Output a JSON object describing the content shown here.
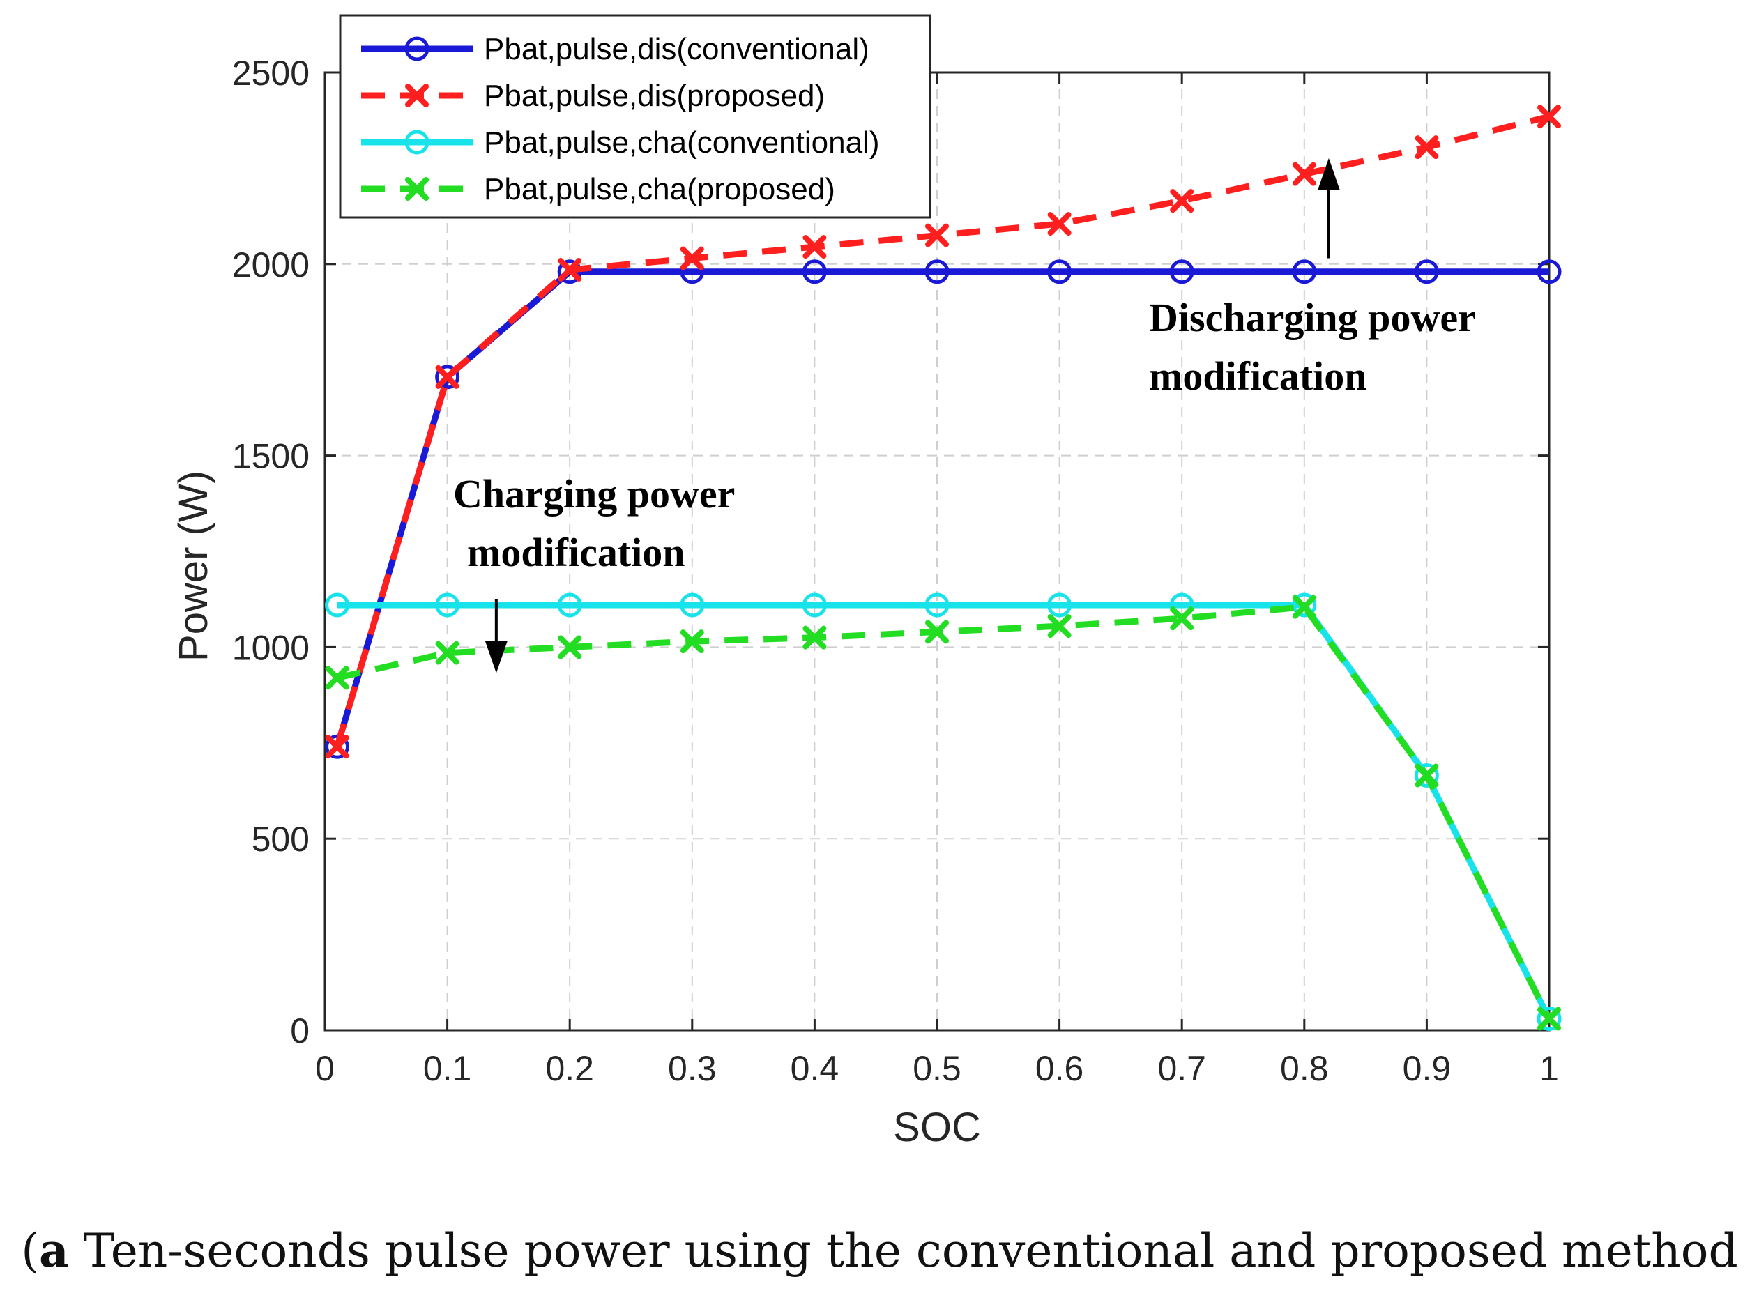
{
  "chart_data": {
    "type": "line",
    "title": "",
    "xlabel": "SOC",
    "ylabel": "Power (W)",
    "xlim": [
      0,
      1
    ],
    "ylim": [
      0,
      2500
    ],
    "grid": true,
    "xticks": [
      0,
      0.1,
      0.2,
      0.3,
      0.4,
      0.5,
      0.6,
      0.7,
      0.8,
      0.9,
      1
    ],
    "xtick_labels": [
      "0",
      "0.1",
      "0.2",
      "0.3",
      "0.4",
      "0.5",
      "0.6",
      "0.7",
      "0.8",
      "0.9",
      "1"
    ],
    "yticks": [
      0,
      500,
      1000,
      1500,
      2000,
      2500
    ],
    "ytick_labels": [
      "0",
      "500",
      "1000",
      "1500",
      "2000",
      "2500"
    ],
    "legend_position": "top-left",
    "series": [
      {
        "name": "Pbat,pulse,dis(conventional)",
        "color": "#1a1ad6",
        "line": "solid",
        "marker": "circle",
        "x": [
          0.01,
          0.1,
          0.2,
          0.3,
          0.4,
          0.5,
          0.6,
          0.7,
          0.8,
          0.9,
          1
        ],
        "y": [
          740,
          1705,
          1980,
          1980,
          1980,
          1980,
          1980,
          1980,
          1980,
          1980,
          1980
        ]
      },
      {
        "name": "Pbat,pulse,dis(proposed)",
        "color": "#ff1f1f",
        "line": "dashed",
        "marker": "x",
        "x": [
          0.01,
          0.1,
          0.2,
          0.3,
          0.4,
          0.5,
          0.6,
          0.7,
          0.8,
          0.9,
          1
        ],
        "y": [
          740,
          1705,
          1985,
          2015,
          2045,
          2075,
          2105,
          2165,
          2235,
          2305,
          2385
        ]
      },
      {
        "name": "Pbat,pulse,cha(conventional)",
        "color": "#19e3ea",
        "line": "solid",
        "marker": "circle",
        "x": [
          0.01,
          0.1,
          0.2,
          0.3,
          0.4,
          0.5,
          0.6,
          0.7,
          0.8,
          0.9,
          1
        ],
        "y": [
          1110,
          1110,
          1110,
          1110,
          1110,
          1110,
          1110,
          1110,
          1110,
          665,
          30
        ]
      },
      {
        "name": "Pbat,pulse,cha(proposed)",
        "color": "#22dd22",
        "line": "dashed",
        "marker": "x",
        "x": [
          0.01,
          0.1,
          0.2,
          0.3,
          0.4,
          0.5,
          0.6,
          0.7,
          0.8,
          0.9,
          1
        ],
        "y": [
          920,
          985,
          1000,
          1015,
          1025,
          1040,
          1055,
          1075,
          1105,
          665,
          30
        ]
      }
    ],
    "annotations": [
      {
        "lines": [
          "Discharging power",
          "modification"
        ],
        "arrow": "up",
        "x": 0.82,
        "y_from": 2015,
        "y_to": 2240
      },
      {
        "lines": [
          "Charging power",
          "modification"
        ],
        "arrow": "down",
        "x": 0.14,
        "y_from": 1125,
        "y_to": 965
      }
    ]
  },
  "caption": {
    "label": "a",
    "text": " Ten-seconds pulse power using the conventional and proposed method"
  }
}
